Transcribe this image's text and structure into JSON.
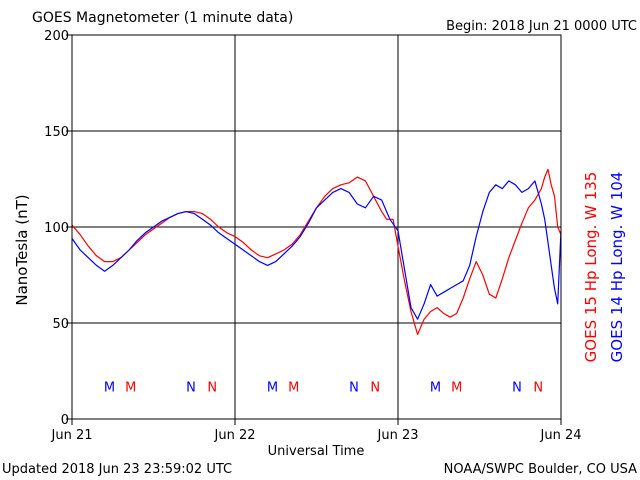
{
  "header": {
    "title": "GOES Magnetometer (1 minute data)",
    "begin": "Begin:  2018 Jun 21 0000 UTC"
  },
  "footer": {
    "updated": "Updated 2018 Jun 23 23:59:02 UTC",
    "credit": "NOAA/SWPC Boulder, CO USA"
  },
  "colors": {
    "goes15": "#ff0000",
    "goes14": "#0000ff",
    "grid": "#000000"
  },
  "chart_data": {
    "type": "line",
    "title": "GOES Magnetometer (1 minute data)",
    "xlabel": "Universal Time",
    "ylabel": "NanoTesla (nT)",
    "xlim": [
      0,
      3
    ],
    "ylim": [
      0,
      200
    ],
    "grid": true,
    "x_ticks": [
      {
        "value": 0,
        "label": "Jun 21"
      },
      {
        "value": 1,
        "label": "Jun 22"
      },
      {
        "value": 2,
        "label": "Jun 23"
      },
      {
        "value": 3,
        "label": "Jun 24"
      }
    ],
    "y_ticks": [
      0,
      50,
      100,
      150,
      200
    ],
    "right_labels": [
      {
        "text": "GOES 15 Hp  Long. W 135",
        "color": "#ff0000"
      },
      {
        "text": "GOES 14 Hp  Long. W 104",
        "color": "#0000ff"
      }
    ],
    "markers": [
      {
        "day": 0.23,
        "letter": "M",
        "color": "#0000ff"
      },
      {
        "day": 0.36,
        "letter": "M",
        "color": "#ff0000"
      },
      {
        "day": 0.73,
        "letter": "N",
        "color": "#0000ff"
      },
      {
        "day": 0.86,
        "letter": "N",
        "color": "#ff0000"
      },
      {
        "day": 1.23,
        "letter": "M",
        "color": "#0000ff"
      },
      {
        "day": 1.36,
        "letter": "M",
        "color": "#ff0000"
      },
      {
        "day": 1.73,
        "letter": "N",
        "color": "#0000ff"
      },
      {
        "day": 1.86,
        "letter": "N",
        "color": "#ff0000"
      },
      {
        "day": 2.23,
        "letter": "M",
        "color": "#0000ff"
      },
      {
        "day": 2.36,
        "letter": "M",
        "color": "#ff0000"
      },
      {
        "day": 2.73,
        "letter": "N",
        "color": "#0000ff"
      },
      {
        "day": 2.86,
        "letter": "N",
        "color": "#ff0000"
      }
    ],
    "marker_level": 17,
    "series": [
      {
        "name": "GOES 15 Hp",
        "color": "#ff0000",
        "x": [
          0,
          0.05,
          0.1,
          0.15,
          0.2,
          0.25,
          0.3,
          0.35,
          0.4,
          0.45,
          0.5,
          0.55,
          0.6,
          0.65,
          0.7,
          0.75,
          0.8,
          0.85,
          0.9,
          0.95,
          1.0,
          1.05,
          1.1,
          1.15,
          1.2,
          1.25,
          1.3,
          1.35,
          1.4,
          1.45,
          1.5,
          1.55,
          1.6,
          1.65,
          1.7,
          1.75,
          1.8,
          1.85,
          1.9,
          1.93,
          1.97,
          2.0,
          2.04,
          2.08,
          2.12,
          2.16,
          2.2,
          2.24,
          2.28,
          2.32,
          2.36,
          2.4,
          2.44,
          2.48,
          2.52,
          2.56,
          2.6,
          2.64,
          2.68,
          2.72,
          2.76,
          2.8,
          2.84,
          2.88,
          2.9,
          2.92,
          2.94,
          2.96,
          2.98,
          3.0
        ],
        "y": [
          101,
          96,
          90,
          85,
          82,
          82,
          84,
          88,
          92,
          96,
          99,
          102,
          105,
          107,
          108,
          108,
          107,
          104,
          100,
          97,
          95,
          92,
          88,
          85,
          84,
          86,
          88,
          91,
          96,
          103,
          110,
          116,
          120,
          122,
          123,
          126,
          124,
          116,
          108,
          104,
          104,
          90,
          72,
          56,
          44,
          52,
          56,
          58,
          55,
          53,
          55,
          63,
          73,
          82,
          75,
          65,
          63,
          73,
          84,
          93,
          102,
          110,
          114,
          120,
          126,
          130,
          122,
          116,
          100,
          96
        ]
      },
      {
        "name": "GOES 14 Hp",
        "color": "#0000ff",
        "x": [
          0,
          0.05,
          0.1,
          0.15,
          0.2,
          0.25,
          0.3,
          0.35,
          0.4,
          0.45,
          0.5,
          0.55,
          0.6,
          0.65,
          0.7,
          0.75,
          0.8,
          0.85,
          0.9,
          0.95,
          1.0,
          1.05,
          1.1,
          1.15,
          1.2,
          1.25,
          1.3,
          1.35,
          1.4,
          1.45,
          1.5,
          1.55,
          1.6,
          1.65,
          1.7,
          1.75,
          1.8,
          1.85,
          1.9,
          1.95,
          2.0,
          2.04,
          2.08,
          2.12,
          2.16,
          2.2,
          2.24,
          2.28,
          2.32,
          2.36,
          2.4,
          2.44,
          2.48,
          2.52,
          2.56,
          2.6,
          2.64,
          2.68,
          2.72,
          2.76,
          2.8,
          2.84,
          2.88,
          2.9,
          2.92,
          2.94,
          2.96,
          2.98,
          3.0
        ],
        "y": [
          94,
          88,
          84,
          80,
          77,
          80,
          84,
          88,
          93,
          97,
          100,
          103,
          105,
          107,
          108,
          107,
          104,
          101,
          97,
          94,
          91,
          88,
          85,
          82,
          80,
          82,
          86,
          90,
          95,
          102,
          110,
          114,
          118,
          120,
          118,
          112,
          110,
          116,
          114,
          104,
          98,
          78,
          58,
          52,
          60,
          70,
          64,
          66,
          68,
          70,
          72,
          80,
          95,
          108,
          118,
          122,
          120,
          124,
          122,
          118,
          120,
          124,
          112,
          104,
          92,
          80,
          68,
          60,
          98
        ]
      }
    ]
  }
}
